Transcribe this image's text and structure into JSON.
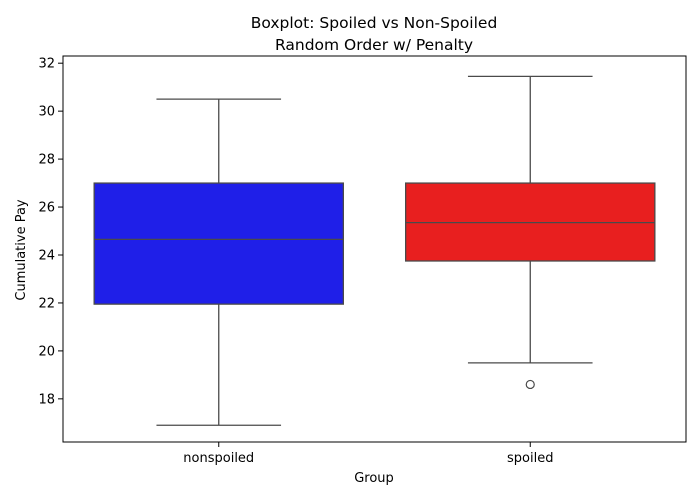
{
  "chart_data": {
    "type": "box",
    "title": "Boxplot: Spoiled vs Non-Spoiled",
    "subtitle": "Random Order w/ Penalty",
    "xlabel": "Group",
    "ylabel": "Cumulative Pay",
    "ylim": [
      16.2,
      32.3
    ],
    "yticks": [
      18,
      20,
      22,
      24,
      26,
      28,
      30,
      32
    ],
    "grid": false,
    "categories": [
      "nonspoiled",
      "spoiled"
    ],
    "series": [
      {
        "category": "nonspoiled",
        "color": "#1f1fe8",
        "whisker_low": 16.9,
        "q1": 21.95,
        "median": 24.65,
        "q3": 27.0,
        "whisker_high": 30.5,
        "outliers": []
      },
      {
        "category": "spoiled",
        "color": "#e81f1f",
        "whisker_low": 19.5,
        "q1": 23.75,
        "median": 25.35,
        "q3": 27.0,
        "whisker_high": 31.45,
        "outliers": [
          18.6
        ]
      }
    ]
  }
}
